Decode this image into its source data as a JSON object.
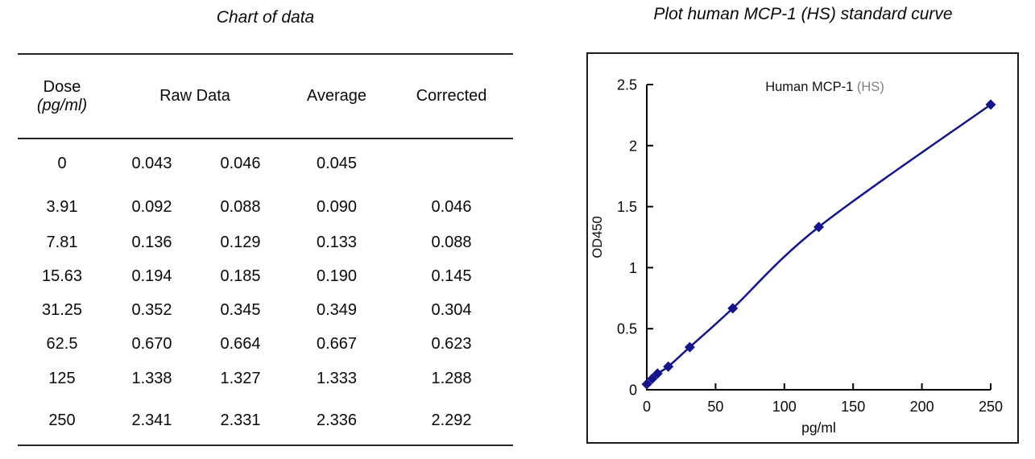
{
  "table": {
    "title": "Chart of data",
    "headers": {
      "dose_line1": "Dose",
      "dose_line2": "(pg/ml)",
      "raw_data": "Raw Data",
      "average": "Average",
      "corrected": "Corrected"
    },
    "rows": [
      {
        "dose": "0",
        "raw1": "0.043",
        "raw2": "0.046",
        "average": "0.045",
        "corrected": ""
      },
      {
        "dose": "3.91",
        "raw1": "0.092",
        "raw2": "0.088",
        "average": "0.090",
        "corrected": "0.046"
      },
      {
        "dose": "7.81",
        "raw1": "0.136",
        "raw2": "0.129",
        "average": "0.133",
        "corrected": "0.088"
      },
      {
        "dose": "15.63",
        "raw1": "0.194",
        "raw2": "0.185",
        "average": "0.190",
        "corrected": "0.145"
      },
      {
        "dose": "31.25",
        "raw1": "0.352",
        "raw2": "0.345",
        "average": "0.349",
        "corrected": "0.304"
      },
      {
        "dose": "62.5",
        "raw1": "0.670",
        "raw2": "0.664",
        "average": "0.667",
        "corrected": "0.623"
      },
      {
        "dose": "125",
        "raw1": "1.338",
        "raw2": "1.327",
        "average": "1.333",
        "corrected": "1.288"
      },
      {
        "dose": "250",
        "raw1": "2.341",
        "raw2": "2.331",
        "average": "2.336",
        "corrected": "2.292"
      }
    ]
  },
  "plot_panel": {
    "title": "Plot human MCP-1 (HS) standard curve"
  },
  "chart_data": {
    "type": "line",
    "title": "Human MCP-1 (HS)",
    "title_main": "Human MCP-1",
    "title_suffix": " (HS)",
    "xlabel": "pg/ml",
    "ylabel": "OD450",
    "x": [
      0,
      3.91,
      7.81,
      15.63,
      31.25,
      62.5,
      125,
      250
    ],
    "y": [
      0.045,
      0.09,
      0.133,
      0.19,
      0.349,
      0.667,
      1.333,
      2.336
    ],
    "xlim": [
      0,
      250
    ],
    "ylim": [
      0,
      2.5
    ],
    "xticks": [
      0,
      50,
      100,
      150,
      200,
      250
    ],
    "yticks": [
      0,
      0.5,
      1,
      1.5,
      2,
      2.5
    ],
    "grid": false,
    "legend": "none",
    "marker": "diamond",
    "colors": {
      "line": "#14148c",
      "marker": "#14148c",
      "axis": "#000000",
      "title_suffix_gray": "#808080"
    }
  }
}
